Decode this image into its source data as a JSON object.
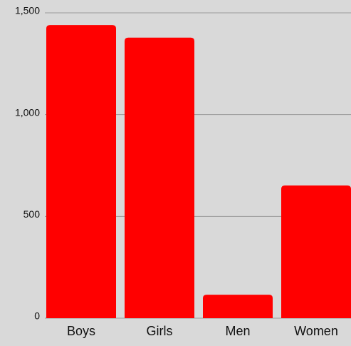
{
  "chart_data": {
    "type": "bar",
    "categories": [
      "Boys",
      "Girls",
      "Men",
      "Women"
    ],
    "values": [
      1440,
      1378,
      115,
      652
    ],
    "color": "#ff0000",
    "ylim": [
      0,
      1500
    ],
    "yticks": [
      0,
      500,
      {
        "value": 1000,
        "label": "1,000"
      },
      {
        "value": 1500,
        "label": "1,500"
      }
    ],
    "grid": true
  }
}
